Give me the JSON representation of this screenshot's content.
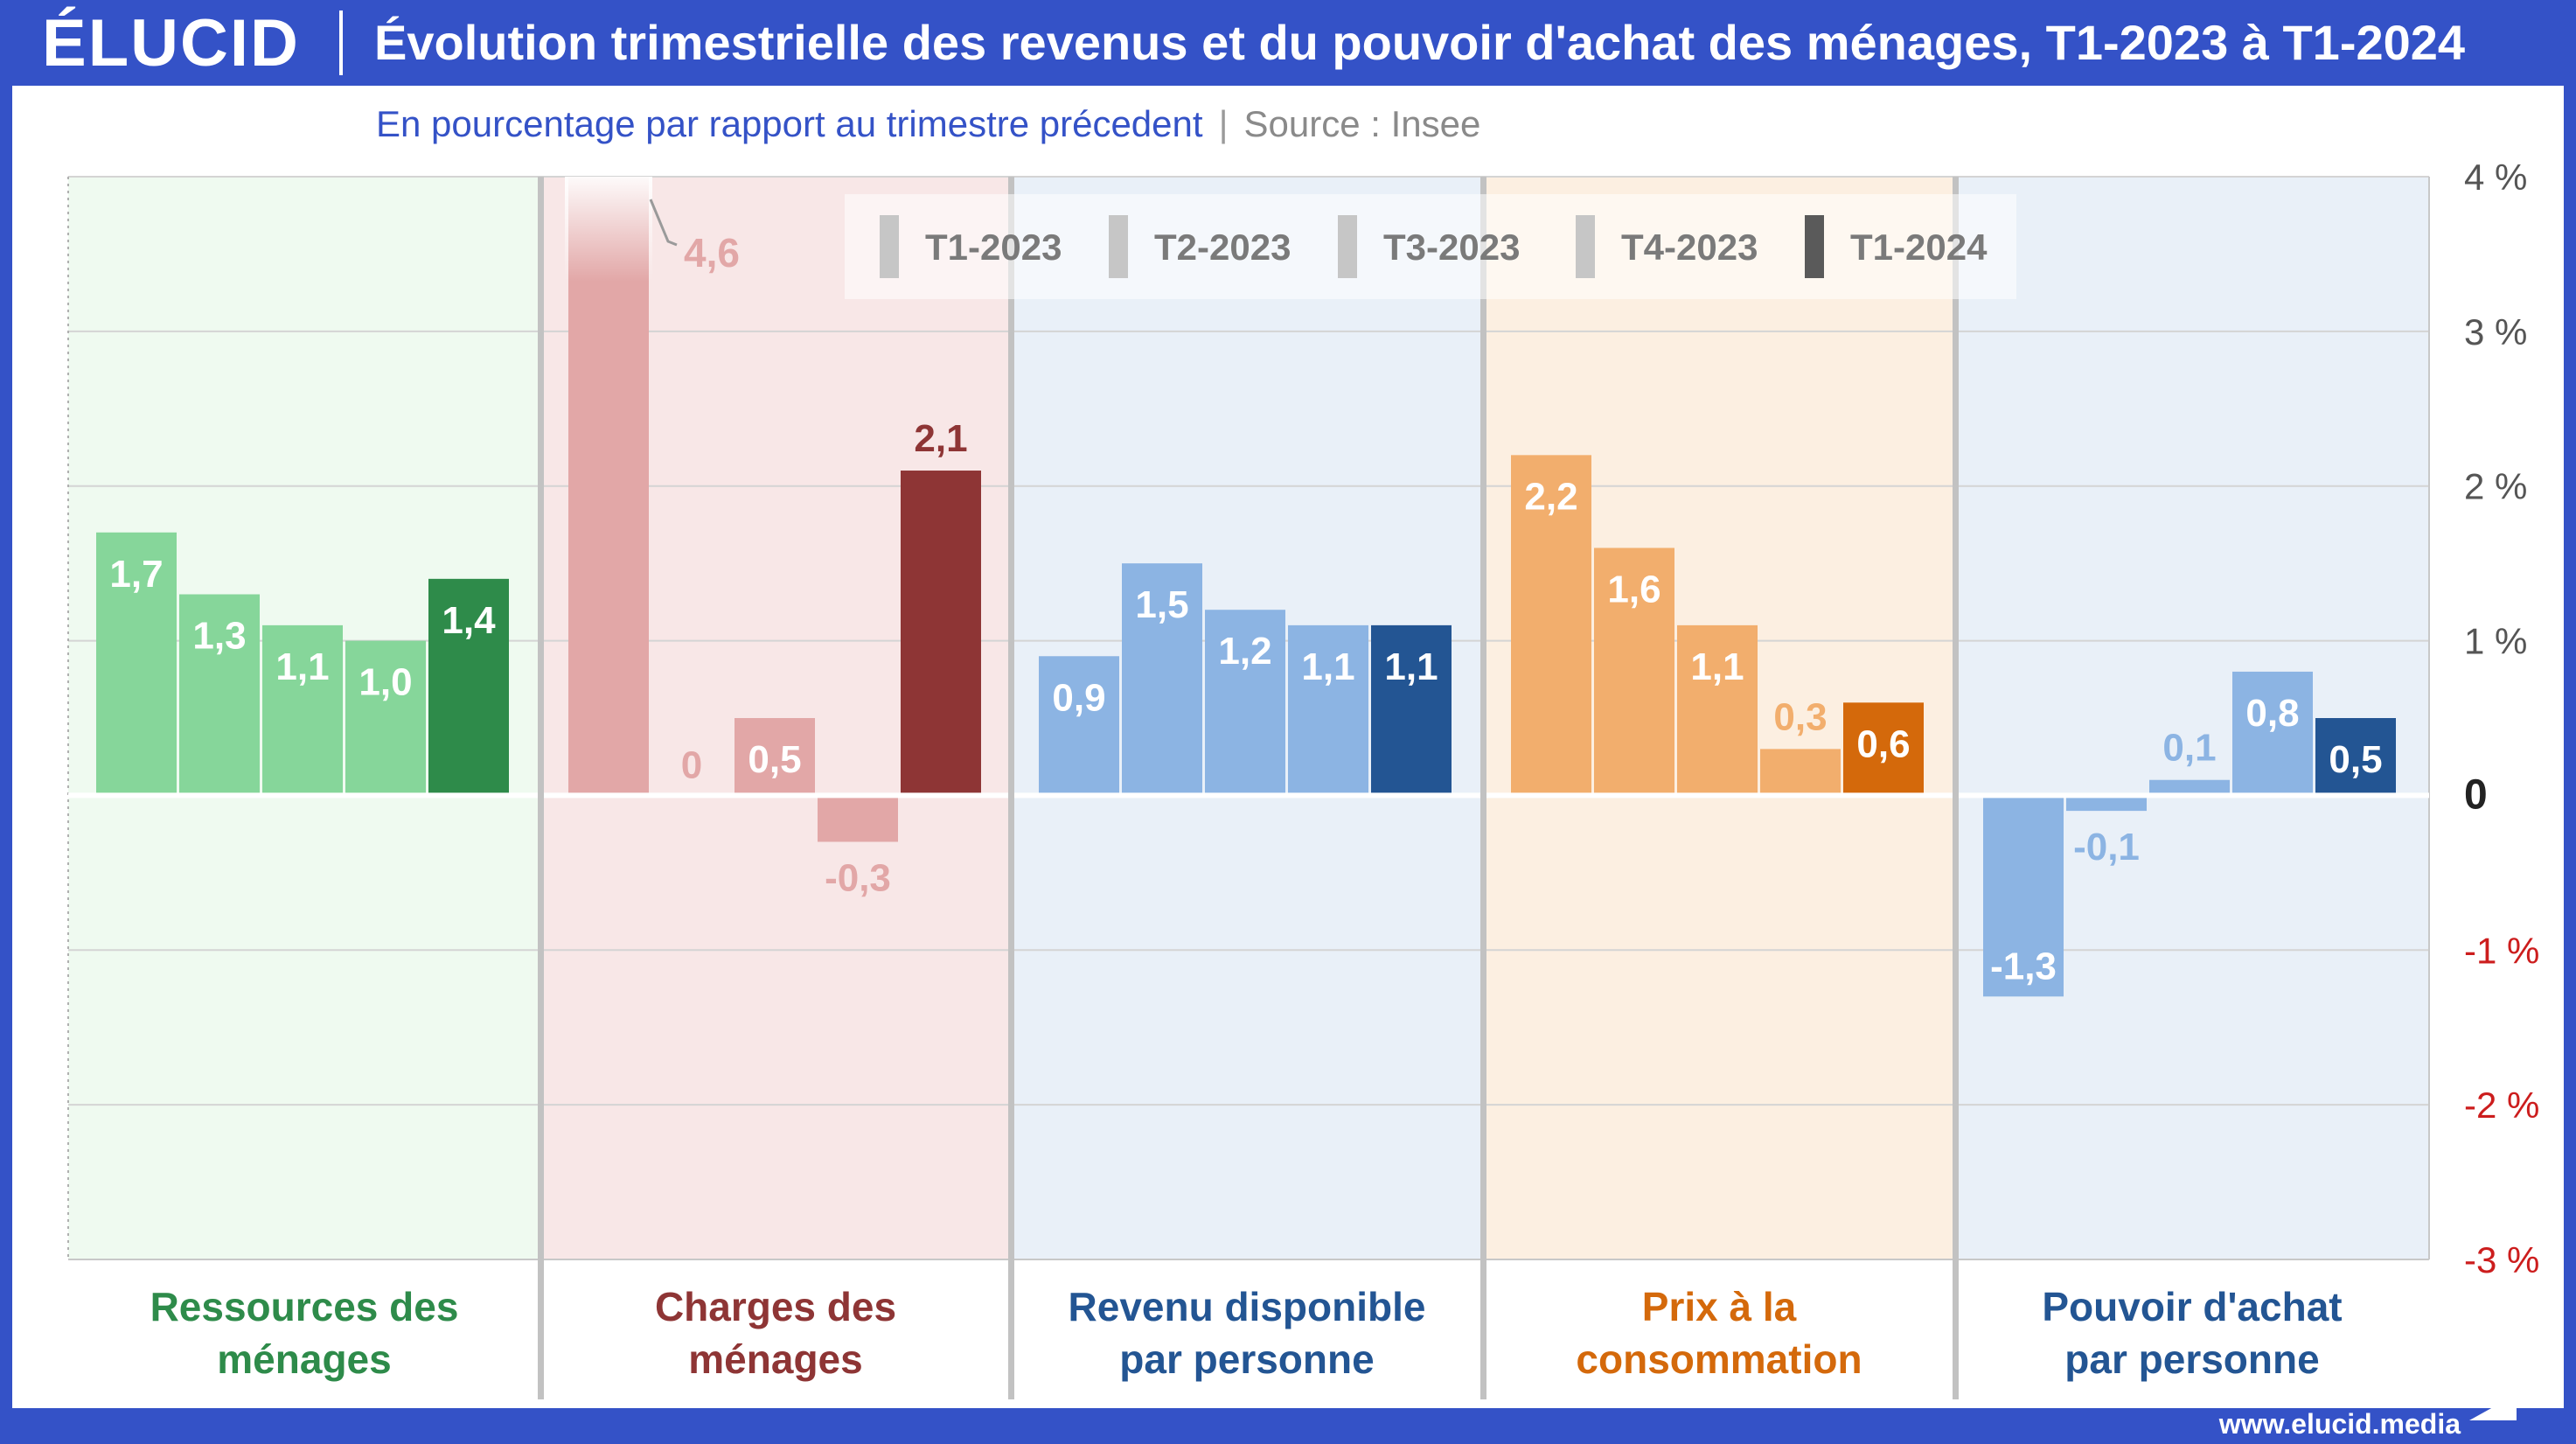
{
  "header": {
    "logo": "ÉLUCID",
    "title": "Évolution trimestrielle des revenus et du pouvoir d'achat des ménages, T1-2023 à T1-2024"
  },
  "subtitle": "En pourcentage par rapport au trimestre précedent",
  "separator": "|",
  "source": "Source : Insee",
  "footer": {
    "url": "www.elucid.media"
  },
  "colors": {
    "frame": "#3452c7",
    "green": "#2e8b4a",
    "red": "#8e3535",
    "blue": "#235593",
    "orange": "#d4690b",
    "negative_tick": "#cc1d1d"
  },
  "chart_data": {
    "type": "bar",
    "legend_position": "top-center",
    "grid": true,
    "ylim": [
      -3,
      4
    ],
    "yticks": [
      {
        "value": 4,
        "label": "4 %"
      },
      {
        "value": 3,
        "label": "3 %"
      },
      {
        "value": 2,
        "label": "2 %"
      },
      {
        "value": 1,
        "label": "1 %"
      },
      {
        "value": 0,
        "label": "0"
      },
      {
        "value": -1,
        "label": "-1 %"
      },
      {
        "value": -2,
        "label": "-2 %"
      },
      {
        "value": -3,
        "label": "-3 %"
      }
    ],
    "series": [
      "T1-2023",
      "T2-2023",
      "T3-2023",
      "T4-2023",
      "T1-2024"
    ],
    "categories": [
      {
        "name": "Ressources des ménages",
        "lines": [
          "Ressources des",
          "ménages"
        ],
        "values": [
          1.7,
          1.3,
          1.1,
          1.0,
          1.4
        ],
        "labels": [
          "1,7",
          "1,3",
          "1,1",
          "1,0",
          "1,4"
        ],
        "color": "#2e8b4a",
        "light_color": "#86d69a",
        "bg": "#effaf0"
      },
      {
        "name": "Charges des ménages",
        "lines": [
          "Charges des",
          "ménages"
        ],
        "values": [
          4.6,
          0,
          0.5,
          -0.3,
          2.1
        ],
        "labels": [
          "4,6",
          "0",
          "0,5",
          "-0,3",
          "2,1"
        ],
        "color": "#8e3535",
        "light_color": "#e2a7a7",
        "bg": "#f8e7e7"
      },
      {
        "name": "Revenu disponible par personne",
        "lines": [
          "Revenu disponible",
          "par personne"
        ],
        "values": [
          0.9,
          1.5,
          1.2,
          1.1,
          1.1
        ],
        "labels": [
          "0,9",
          "1,5",
          "1,2",
          "1,1",
          "1,1"
        ],
        "color": "#235593",
        "light_color": "#8cb4e3",
        "bg": "#e9f0f8"
      },
      {
        "name": "Prix à la consommation",
        "lines": [
          "Prix à la",
          "consommation"
        ],
        "values": [
          2.2,
          1.6,
          1.1,
          0.3,
          0.6
        ],
        "labels": [
          "2,2",
          "1,6",
          "1,1",
          "0,3",
          "0,6"
        ],
        "color": "#d4690b",
        "light_color": "#f2ae6d",
        "bg": "#fcefe1"
      },
      {
        "name": "Pouvoir d'achat par personne",
        "lines": [
          "Pouvoir d'achat",
          "par personne"
        ],
        "values": [
          -1.3,
          -0.1,
          0.1,
          0.8,
          0.5
        ],
        "labels": [
          "-1,3",
          "-0,1",
          "0,1",
          "0,8",
          "0,5"
        ],
        "color": "#235593",
        "light_color": "#8cb4e3",
        "bg": "#e9f0f8"
      }
    ]
  }
}
